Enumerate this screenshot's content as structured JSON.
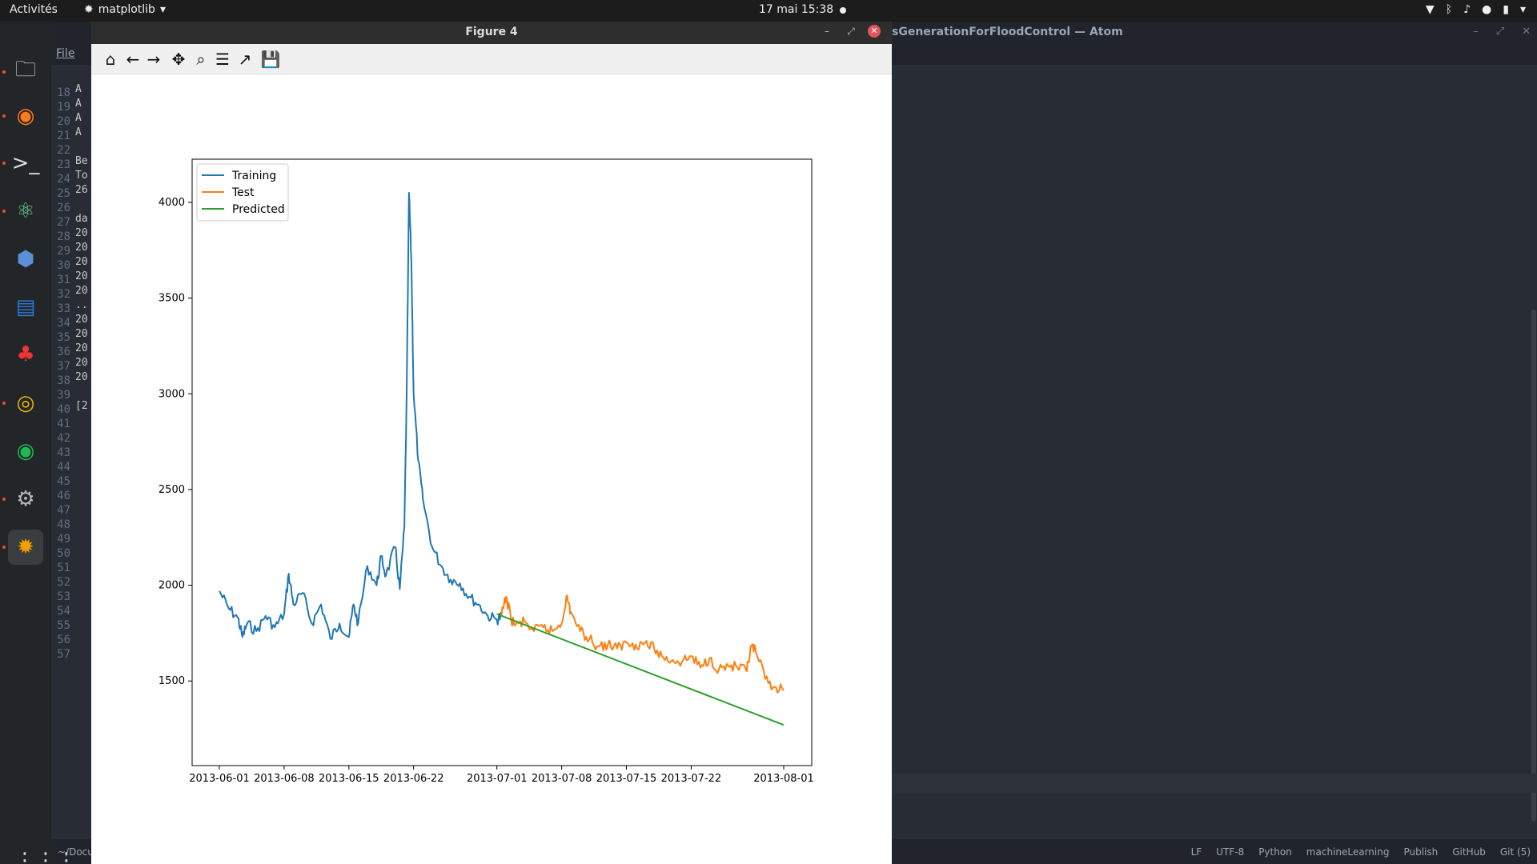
{
  "topbar": {
    "activities": "Activités",
    "app_name": "matplotlib",
    "clock": "17 mai  15:38"
  },
  "dock": {
    "items": [
      {
        "name": "files-icon",
        "glyph": "🗀",
        "color": "#cfcfcf"
      },
      {
        "name": "firefox-icon",
        "glyph": "◉",
        "color": "#ff7b1a"
      },
      {
        "name": "terminal-icon",
        "glyph": ">_",
        "color": "#dddddd"
      },
      {
        "name": "atom-icon",
        "glyph": "⚛",
        "color": "#6bd49a"
      },
      {
        "name": "virtualbox-icon",
        "glyph": "⬢",
        "color": "#5b8fd6"
      },
      {
        "name": "writer-icon",
        "glyph": "▤",
        "color": "#2a7bd4"
      },
      {
        "name": "popcorn-icon",
        "glyph": "♣",
        "color": "#e33"
      },
      {
        "name": "chrome-icon",
        "glyph": "◎",
        "color": "#f2b705"
      },
      {
        "name": "spotify-icon",
        "glyph": "◉",
        "color": "#1db954"
      },
      {
        "name": "settings-icon",
        "glyph": "⚙",
        "color": "#bbbbbb"
      },
      {
        "name": "matplotlib-icon",
        "glyph": "✹",
        "color": "#f0a000"
      }
    ]
  },
  "atom": {
    "title": "sGenerationForFloodControl — Atom",
    "menu_file": "File",
    "line_numbers": [
      "18",
      "19",
      "20",
      "21",
      "22",
      "23",
      "24",
      "25",
      "26",
      "27",
      "28",
      "29",
      "30",
      "31",
      "32",
      "33",
      "34",
      "35",
      "36",
      "37",
      "38",
      "39",
      "40",
      "41",
      "42",
      "43",
      "44",
      "45",
      "46",
      "47",
      "48",
      "49",
      "50",
      "51",
      "52",
      "53",
      "54",
      "55",
      "56",
      "57"
    ],
    "term_lines": [
      "A",
      "A",
      "A",
      "A",
      "",
      "Be",
      "To",
      "26",
      "",
      "da",
      "20",
      "20",
      "20",
      "20",
      "20",
      "..",
      "20",
      "20",
      "20",
      "20",
      "20",
      "",
      "[2"
    ],
    "status_left": "~/Docu",
    "status_right": [
      "LF",
      "UTF-8",
      "Python",
      "machineLearning",
      "Publish",
      "GitHub",
      "Git (5)"
    ]
  },
  "figure": {
    "title": "Figure 4",
    "toolbar": [
      {
        "name": "home-icon",
        "glyph": "⌂"
      },
      {
        "name": "back-icon",
        "glyph": "←"
      },
      {
        "name": "forward-icon",
        "glyph": "→"
      },
      {
        "name": "pan-icon",
        "glyph": "✥"
      },
      {
        "name": "zoom-icon",
        "glyph": "⌕"
      },
      {
        "name": "configure-subplots-icon",
        "glyph": "☰"
      },
      {
        "name": "edit-axis-icon",
        "glyph": "↗"
      },
      {
        "name": "save-icon",
        "glyph": "💾"
      }
    ]
  },
  "chart_data": {
    "type": "line",
    "xlim": [
      "2013-06-01",
      "2013-08-01"
    ],
    "ylim": [
      1200,
      4050
    ],
    "xticks": [
      "2013-06-01",
      "2013-06-08",
      "2013-06-15",
      "2013-06-22",
      "2013-07-01",
      "2013-07-08",
      "2013-07-15",
      "2013-07-22",
      "2013-08-01"
    ],
    "yticks": [
      1500,
      2000,
      2500,
      3000,
      3500,
      4000
    ],
    "legend_position": "top-left",
    "series": [
      {
        "name": "Training",
        "color": "#1f77b4",
        "points": [
          [
            "2013-06-01",
            1970
          ],
          [
            "2013-06-02",
            1880
          ],
          [
            "2013-06-03",
            1830
          ],
          [
            "2013-06-03T12",
            1730
          ],
          [
            "2013-06-04",
            1800
          ],
          [
            "2013-06-05",
            1760
          ],
          [
            "2013-06-06",
            1840
          ],
          [
            "2013-06-07",
            1780
          ],
          [
            "2013-06-08",
            1850
          ],
          [
            "2013-06-08T12",
            2060
          ],
          [
            "2013-06-09",
            1900
          ],
          [
            "2013-06-10",
            1960
          ],
          [
            "2013-06-11",
            1800
          ],
          [
            "2013-06-12",
            1900
          ],
          [
            "2013-06-13",
            1720
          ],
          [
            "2013-06-14",
            1800
          ],
          [
            "2013-06-15",
            1730
          ],
          [
            "2013-06-15T12",
            1900
          ],
          [
            "2013-06-16",
            1800
          ],
          [
            "2013-06-17",
            2100
          ],
          [
            "2013-06-18",
            2000
          ],
          [
            "2013-06-18T12",
            2150
          ],
          [
            "2013-06-19",
            2050
          ],
          [
            "2013-06-20",
            2200
          ],
          [
            "2013-06-20T12",
            1980
          ],
          [
            "2013-06-21",
            2300
          ],
          [
            "2013-06-21T06",
            3000
          ],
          [
            "2013-06-21T12",
            4050
          ],
          [
            "2013-06-21T18",
            3700
          ],
          [
            "2013-06-22",
            3000
          ],
          [
            "2013-06-22T12",
            2650
          ],
          [
            "2013-06-23",
            2450
          ],
          [
            "2013-06-24",
            2200
          ],
          [
            "2013-06-25",
            2100
          ],
          [
            "2013-06-26",
            2030
          ],
          [
            "2013-06-27",
            2010
          ],
          [
            "2013-06-28",
            1940
          ],
          [
            "2013-06-29",
            1900
          ],
          [
            "2013-06-30",
            1840
          ],
          [
            "2013-07-01",
            1820
          ],
          [
            "2013-07-01T12",
            1840
          ]
        ]
      },
      {
        "name": "Test",
        "color": "#ff7f0e",
        "points": [
          [
            "2013-07-01T12",
            1840
          ],
          [
            "2013-07-02",
            1940
          ],
          [
            "2013-07-02T12",
            1830
          ],
          [
            "2013-07-03",
            1790
          ],
          [
            "2013-07-04",
            1810
          ],
          [
            "2013-07-05",
            1760
          ],
          [
            "2013-07-06",
            1780
          ],
          [
            "2013-07-07",
            1760
          ],
          [
            "2013-07-08",
            1800
          ],
          [
            "2013-07-08T12",
            1940
          ],
          [
            "2013-07-09",
            1860
          ],
          [
            "2013-07-10",
            1760
          ],
          [
            "2013-07-11",
            1720
          ],
          [
            "2013-07-12",
            1680
          ],
          [
            "2013-07-13",
            1690
          ],
          [
            "2013-07-14",
            1670
          ],
          [
            "2013-07-15",
            1700
          ],
          [
            "2013-07-16",
            1690
          ],
          [
            "2013-07-17",
            1700
          ],
          [
            "2013-07-18",
            1670
          ],
          [
            "2013-07-19",
            1620
          ],
          [
            "2013-07-20",
            1610
          ],
          [
            "2013-07-21",
            1600
          ],
          [
            "2013-07-22",
            1630
          ],
          [
            "2013-07-23",
            1570
          ],
          [
            "2013-07-24",
            1620
          ],
          [
            "2013-07-25",
            1560
          ],
          [
            "2013-07-26",
            1580
          ],
          [
            "2013-07-27",
            1570
          ],
          [
            "2013-07-28",
            1550
          ],
          [
            "2013-07-28T12",
            1680
          ],
          [
            "2013-07-29",
            1650
          ],
          [
            "2013-07-30",
            1510
          ],
          [
            "2013-07-31",
            1470
          ],
          [
            "2013-08-01",
            1450
          ]
        ]
      },
      {
        "name": "Predicted",
        "color": "#2ca02c",
        "points": [
          [
            "2013-07-01",
            1850
          ],
          [
            "2013-08-01",
            1270
          ]
        ]
      }
    ]
  }
}
